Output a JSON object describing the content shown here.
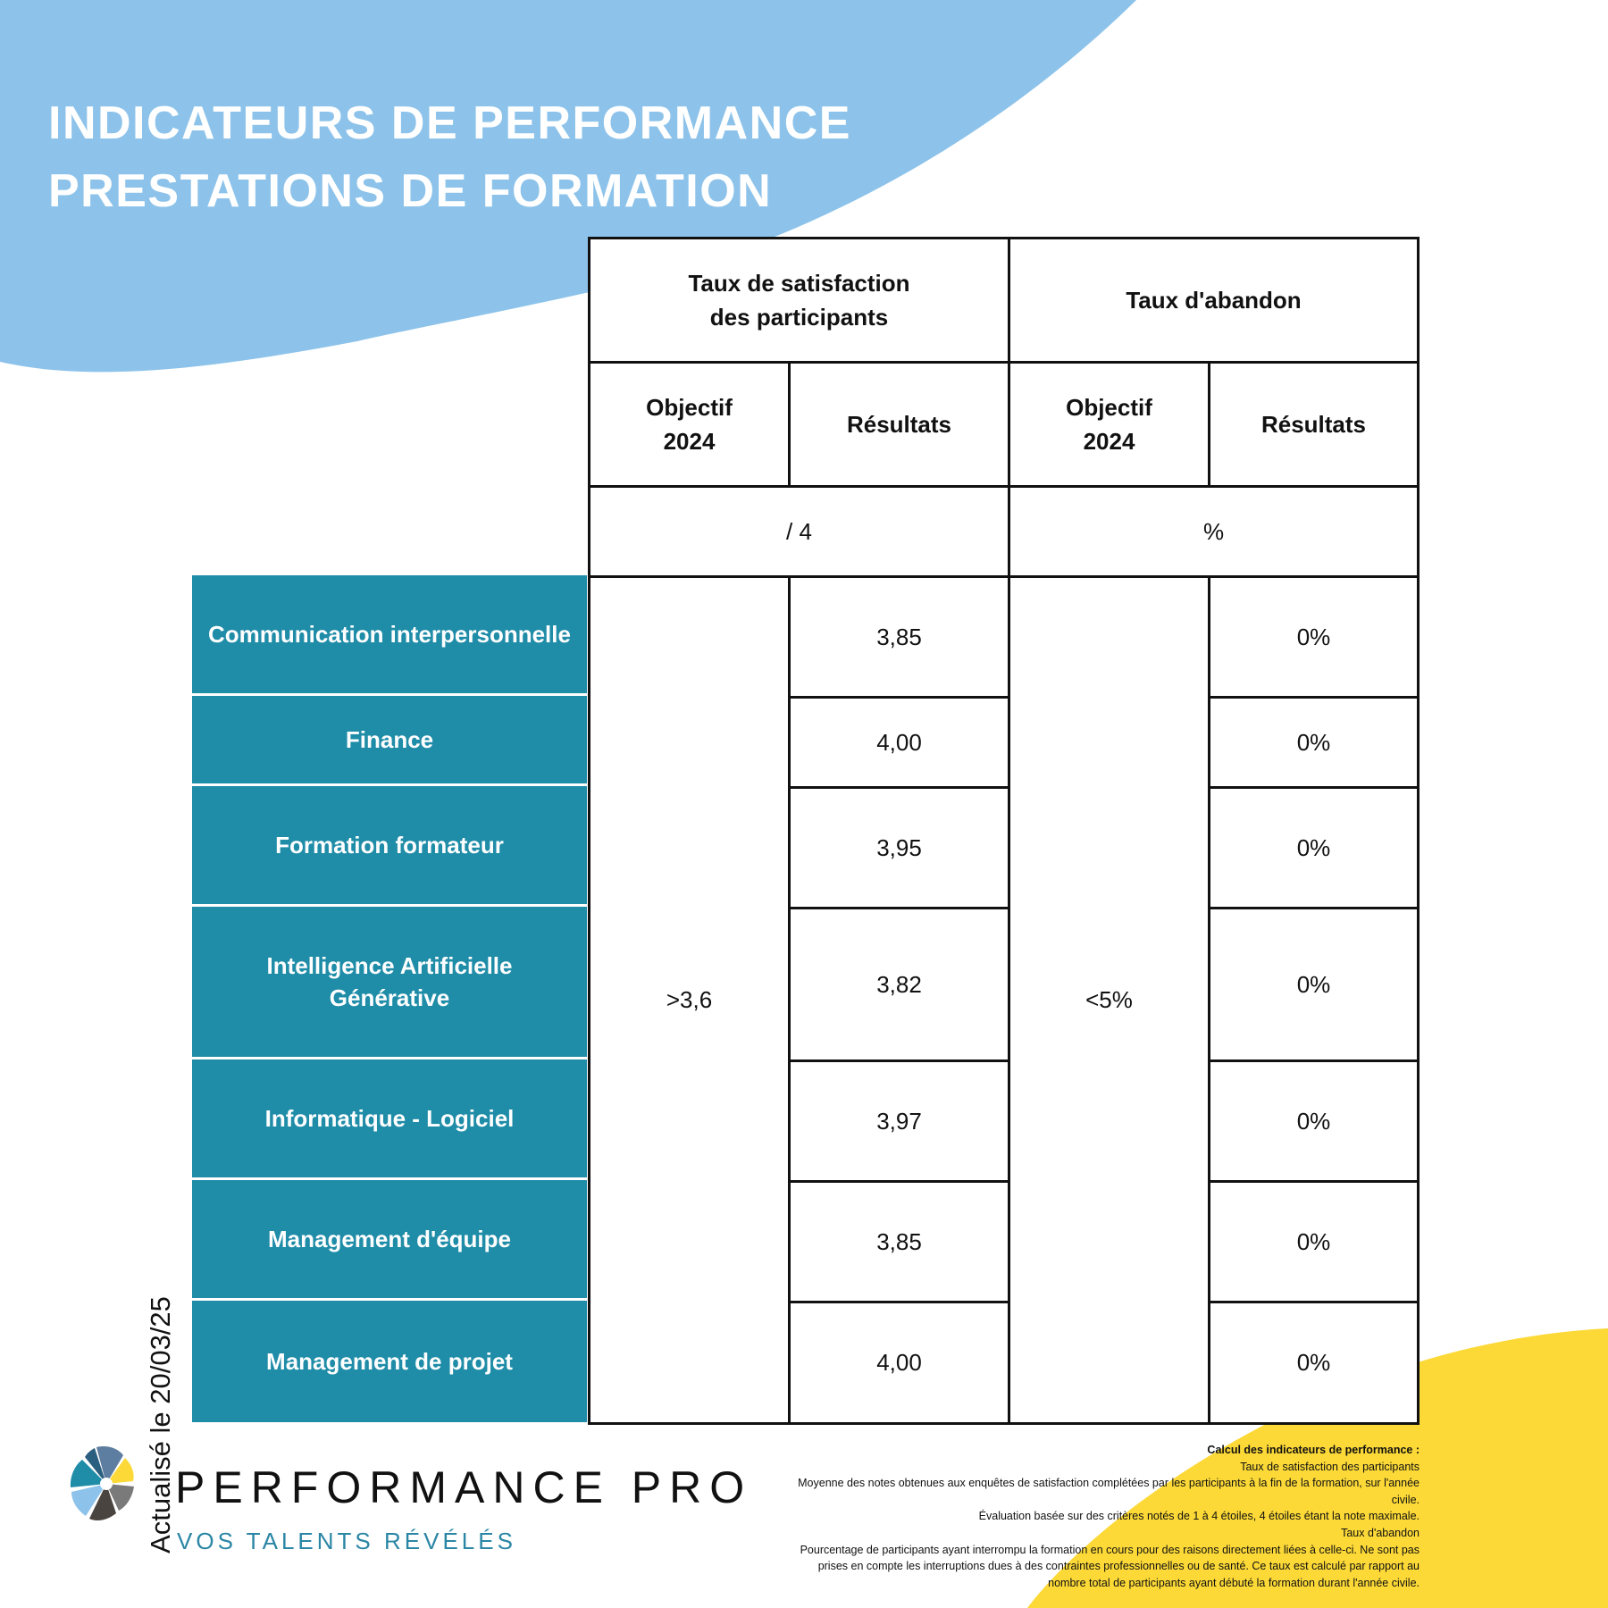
{
  "colors": {
    "sky_blue": "#8dc3ea",
    "teal": "#1f8ca8",
    "yellow": "#fcd937",
    "tagline_blue": "#2b86a5"
  },
  "title": {
    "line1": "INDICATEURS DE PERFORMANCE",
    "line2": "PRESTATIONS DE FORMATION"
  },
  "table": {
    "satisfaction_header": "Taux de satisfaction\ndes participants",
    "abandon_header": "Taux d'abandon",
    "objectif_label": "Objectif\n2024",
    "resultats_label": "Résultats",
    "satisfaction_unit": "/ 4",
    "abandon_unit": "%",
    "satisfaction_objective": ">3,6",
    "abandon_objective": "<5%",
    "rows": [
      {
        "category": "Communication interpersonnelle",
        "satisfaction": "3,85",
        "abandon": "0%"
      },
      {
        "category": "Finance",
        "satisfaction": "4,00",
        "abandon": "0%"
      },
      {
        "category": "Formation formateur",
        "satisfaction": "3,95",
        "abandon": "0%"
      },
      {
        "category": "Intelligence Artificielle\nGénérative",
        "satisfaction": "3,82",
        "abandon": "0%"
      },
      {
        "category": "Informatique - Logiciel",
        "satisfaction": "3,97",
        "abandon": "0%"
      },
      {
        "category": "Management d'équipe",
        "satisfaction": "3,85",
        "abandon": "0%"
      },
      {
        "category": "Management de projet",
        "satisfaction": "4,00",
        "abandon": "0%"
      }
    ]
  },
  "updated": "Actualisé le 20/03/25",
  "logo": {
    "icon": "pinwheel-logo-icon",
    "brand": "PERFORMANCE PRO",
    "tagline": "VOS TALENTS RÉVÉLÉS"
  },
  "footnote": {
    "heading": "Calcul des indicateurs de performance :",
    "satisfaction_title": "Taux de satisfaction des participants",
    "satisfaction_text1": "Moyenne des notes obtenues aux enquêtes de satisfaction complétées par les participants à la fin de la formation, sur l'année civile.",
    "satisfaction_text2": "Évaluation basée sur des critères notés de 1 à 4 étoiles, 4 étoiles étant la note maximale.",
    "abandon_title": "Taux d'abandon",
    "abandon_text": "Pourcentage de participants ayant interrompu la formation en cours pour des raisons directement liées à celle-ci. Ne sont pas prises en compte les interruptions dues à des contraintes professionnelles ou de santé. Ce taux est calculé par rapport au nombre total de participants ayant débuté la formation durant l'année civile."
  }
}
